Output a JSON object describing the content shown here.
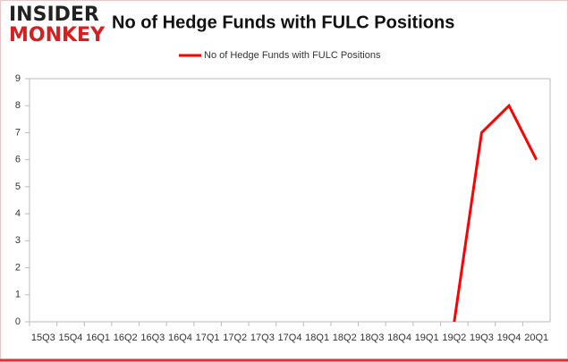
{
  "logo": {
    "line1": "INSIDER",
    "line2": "MONKEY"
  },
  "chart_data": {
    "type": "line",
    "title": "No of Hedge Funds with FULC Positions",
    "categories": [
      "15Q3",
      "15Q4",
      "16Q1",
      "16Q2",
      "16Q3",
      "16Q4",
      "17Q1",
      "17Q2",
      "17Q3",
      "17Q4",
      "18Q1",
      "18Q2",
      "18Q3",
      "18Q4",
      "19Q1",
      "19Q2",
      "19Q3",
      "19Q4",
      "20Q1"
    ],
    "series": [
      {
        "name": "No of Hedge Funds with FULC Positions",
        "color": "#ff0000",
        "values": [
          null,
          null,
          null,
          null,
          null,
          null,
          null,
          null,
          null,
          null,
          null,
          null,
          null,
          null,
          null,
          0,
          7,
          8,
          6
        ]
      }
    ],
    "ylim": [
      0,
      9
    ],
    "yticks": [
      0,
      1,
      2,
      3,
      4,
      5,
      6,
      7,
      8,
      9
    ],
    "grid": false,
    "legend": "top"
  }
}
